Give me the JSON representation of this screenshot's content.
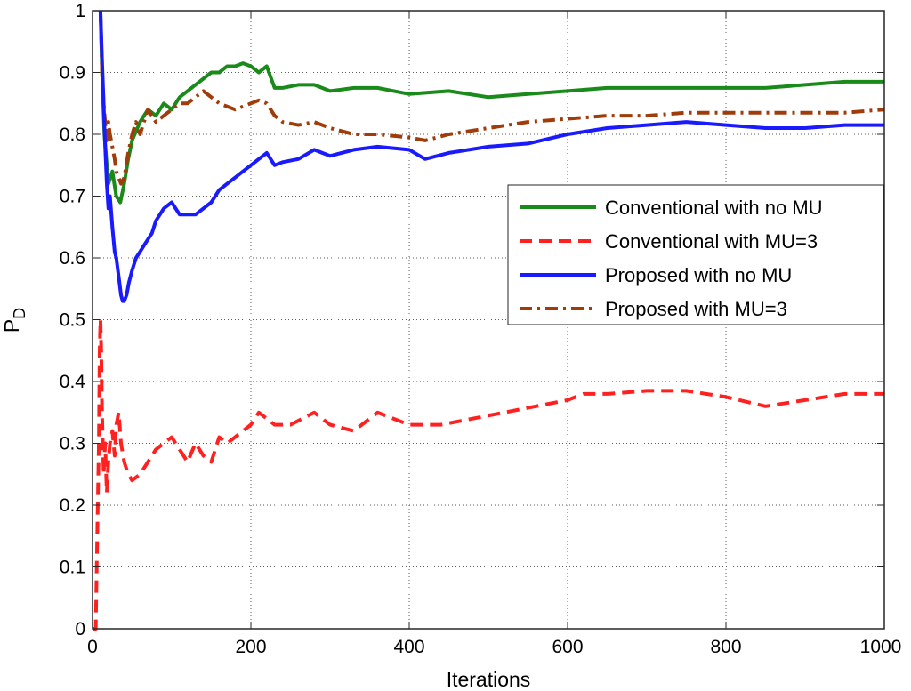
{
  "chart_data": {
    "type": "line",
    "title": "",
    "xlabel": "Iterations",
    "ylabel_main": "P",
    "ylabel_sub": "D",
    "xlim": [
      0,
      1000
    ],
    "ylim": [
      0,
      1
    ],
    "xticks": [
      0,
      200,
      400,
      600,
      800,
      1000
    ],
    "yticks": [
      0,
      0.1,
      0.2,
      0.3,
      0.4,
      0.5,
      0.6,
      0.7,
      0.8,
      0.9,
      1
    ],
    "xtick_labels": [
      "0",
      "200",
      "400",
      "600",
      "800",
      "1000"
    ],
    "ytick_labels": [
      "0",
      "0.1",
      "0.2",
      "0.3",
      "0.4",
      "0.5",
      "0.6",
      "0.7",
      "0.8",
      "0.9",
      "1"
    ],
    "grid": true,
    "legend_position": "center-right",
    "series": [
      {
        "name": "Conventional with no MU",
        "color": "#1a8a1a",
        "dash": "solid",
        "x": [
          10,
          12,
          15,
          20,
          25,
          30,
          35,
          40,
          45,
          50,
          60,
          70,
          80,
          90,
          100,
          110,
          120,
          130,
          140,
          150,
          160,
          170,
          180,
          190,
          200,
          210,
          220,
          230,
          240,
          260,
          280,
          300,
          330,
          360,
          400,
          450,
          500,
          550,
          600,
          650,
          700,
          750,
          800,
          850,
          900,
          950,
          1000
        ],
        "y": [
          1.0,
          0.9,
          0.8,
          0.72,
          0.74,
          0.7,
          0.69,
          0.72,
          0.76,
          0.79,
          0.82,
          0.84,
          0.83,
          0.85,
          0.84,
          0.86,
          0.87,
          0.88,
          0.89,
          0.9,
          0.9,
          0.91,
          0.91,
          0.915,
          0.91,
          0.9,
          0.91,
          0.875,
          0.875,
          0.88,
          0.88,
          0.87,
          0.875,
          0.875,
          0.865,
          0.87,
          0.86,
          0.865,
          0.87,
          0.875,
          0.875,
          0.875,
          0.875,
          0.875,
          0.88,
          0.885,
          0.885
        ]
      },
      {
        "name": "Conventional with MU=3",
        "color": "#ff2020",
        "dash": "dashed",
        "x": [
          0,
          4,
          6,
          8,
          9,
          10,
          11,
          12,
          14,
          16,
          18,
          20,
          22,
          25,
          28,
          30,
          33,
          36,
          40,
          45,
          50,
          60,
          70,
          80,
          90,
          100,
          110,
          120,
          130,
          140,
          150,
          160,
          170,
          180,
          190,
          200,
          210,
          220,
          230,
          250,
          280,
          300,
          330,
          360,
          400,
          440,
          480,
          520,
          560,
          600,
          620,
          650,
          700,
          750,
          800,
          850,
          900,
          950,
          1000
        ],
        "y": [
          0,
          0,
          0.15,
          0.3,
          0.45,
          0.5,
          0.45,
          0.35,
          0.25,
          0.3,
          0.22,
          0.27,
          0.3,
          0.32,
          0.28,
          0.33,
          0.35,
          0.3,
          0.27,
          0.25,
          0.24,
          0.25,
          0.27,
          0.29,
          0.3,
          0.31,
          0.29,
          0.27,
          0.3,
          0.28,
          0.27,
          0.31,
          0.3,
          0.31,
          0.32,
          0.33,
          0.35,
          0.34,
          0.33,
          0.33,
          0.35,
          0.33,
          0.32,
          0.35,
          0.33,
          0.33,
          0.34,
          0.35,
          0.36,
          0.37,
          0.38,
          0.38,
          0.385,
          0.385,
          0.375,
          0.36,
          0.37,
          0.38,
          0.38
        ]
      },
      {
        "name": "Proposed with no MU",
        "color": "#1a1aff",
        "dash": "solid",
        "x": [
          10,
          12,
          14,
          16,
          18,
          20,
          22,
          25,
          28,
          30,
          33,
          36,
          38,
          40,
          43,
          46,
          50,
          55,
          60,
          65,
          70,
          75,
          80,
          90,
          100,
          110,
          120,
          130,
          140,
          150,
          160,
          170,
          180,
          190,
          200,
          210,
          220,
          230,
          240,
          260,
          280,
          300,
          330,
          360,
          400,
          420,
          450,
          500,
          550,
          600,
          650,
          700,
          750,
          800,
          850,
          900,
          950,
          1000
        ],
        "y": [
          1.0,
          0.92,
          0.85,
          0.78,
          0.72,
          0.68,
          0.7,
          0.65,
          0.61,
          0.6,
          0.57,
          0.54,
          0.53,
          0.53,
          0.54,
          0.56,
          0.58,
          0.6,
          0.61,
          0.62,
          0.63,
          0.64,
          0.66,
          0.68,
          0.69,
          0.67,
          0.67,
          0.67,
          0.68,
          0.69,
          0.71,
          0.72,
          0.73,
          0.74,
          0.75,
          0.76,
          0.77,
          0.75,
          0.755,
          0.76,
          0.775,
          0.765,
          0.775,
          0.78,
          0.775,
          0.76,
          0.77,
          0.78,
          0.785,
          0.8,
          0.81,
          0.815,
          0.82,
          0.815,
          0.81,
          0.81,
          0.815,
          0.815
        ]
      },
      {
        "name": "Proposed with MU=3",
        "color": "#a03c0a",
        "dash": "dashdot",
        "x": [
          10,
          12,
          14,
          16,
          18,
          20,
          22,
          25,
          28,
          30,
          33,
          36,
          40,
          45,
          50,
          55,
          60,
          70,
          80,
          90,
          100,
          110,
          120,
          130,
          140,
          150,
          160,
          170,
          180,
          200,
          210,
          220,
          230,
          240,
          260,
          280,
          300,
          330,
          360,
          400,
          420,
          450,
          500,
          550,
          600,
          650,
          700,
          750,
          800,
          850,
          900,
          950,
          1000
        ],
        "y": [
          1.0,
          0.9,
          0.85,
          0.82,
          0.79,
          0.82,
          0.8,
          0.78,
          0.76,
          0.74,
          0.73,
          0.72,
          0.73,
          0.77,
          0.8,
          0.82,
          0.8,
          0.84,
          0.82,
          0.83,
          0.84,
          0.85,
          0.85,
          0.86,
          0.87,
          0.86,
          0.85,
          0.845,
          0.84,
          0.85,
          0.855,
          0.85,
          0.83,
          0.82,
          0.815,
          0.82,
          0.81,
          0.8,
          0.8,
          0.795,
          0.79,
          0.8,
          0.81,
          0.82,
          0.825,
          0.83,
          0.83,
          0.835,
          0.835,
          0.835,
          0.835,
          0.835,
          0.84
        ]
      }
    ]
  }
}
